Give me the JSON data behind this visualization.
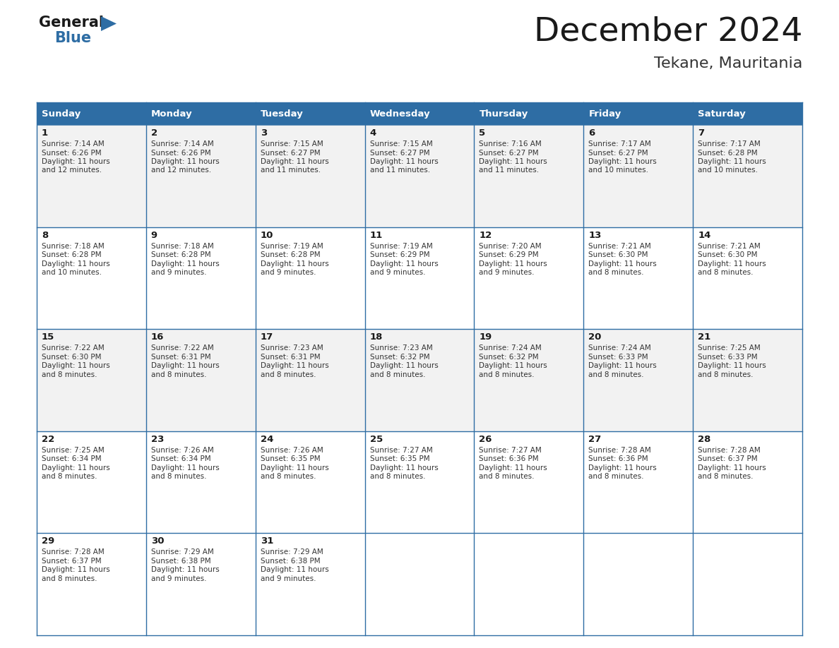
{
  "title": "December 2024",
  "subtitle": "Tekane, Mauritania",
  "header_color": "#2E6DA4",
  "header_text_color": "#FFFFFF",
  "day_names": [
    "Sunday",
    "Monday",
    "Tuesday",
    "Wednesday",
    "Thursday",
    "Friday",
    "Saturday"
  ],
  "grid_line_color": "#2E6DA4",
  "odd_row_color": "#F2F2F2",
  "even_row_color": "#FFFFFF",
  "last_row_empty_color": "#FFFFFF",
  "title_color": "#1a1a1a",
  "subtitle_color": "#333333",
  "cell_text_color": "#333333",
  "day_num_color": "#1a1a1a",
  "days": [
    {
      "date": 1,
      "dow": 0,
      "week": 0,
      "sunrise": "7:14 AM",
      "sunset": "6:26 PM",
      "daylight": "11 hours and 12 minutes."
    },
    {
      "date": 2,
      "dow": 1,
      "week": 0,
      "sunrise": "7:14 AM",
      "sunset": "6:26 PM",
      "daylight": "11 hours and 12 minutes."
    },
    {
      "date": 3,
      "dow": 2,
      "week": 0,
      "sunrise": "7:15 AM",
      "sunset": "6:27 PM",
      "daylight": "11 hours and 11 minutes."
    },
    {
      "date": 4,
      "dow": 3,
      "week": 0,
      "sunrise": "7:15 AM",
      "sunset": "6:27 PM",
      "daylight": "11 hours and 11 minutes."
    },
    {
      "date": 5,
      "dow": 4,
      "week": 0,
      "sunrise": "7:16 AM",
      "sunset": "6:27 PM",
      "daylight": "11 hours and 11 minutes."
    },
    {
      "date": 6,
      "dow": 5,
      "week": 0,
      "sunrise": "7:17 AM",
      "sunset": "6:27 PM",
      "daylight": "11 hours and 10 minutes."
    },
    {
      "date": 7,
      "dow": 6,
      "week": 0,
      "sunrise": "7:17 AM",
      "sunset": "6:28 PM",
      "daylight": "11 hours and 10 minutes."
    },
    {
      "date": 8,
      "dow": 0,
      "week": 1,
      "sunrise": "7:18 AM",
      "sunset": "6:28 PM",
      "daylight": "11 hours and 10 minutes."
    },
    {
      "date": 9,
      "dow": 1,
      "week": 1,
      "sunrise": "7:18 AM",
      "sunset": "6:28 PM",
      "daylight": "11 hours and 9 minutes."
    },
    {
      "date": 10,
      "dow": 2,
      "week": 1,
      "sunrise": "7:19 AM",
      "sunset": "6:28 PM",
      "daylight": "11 hours and 9 minutes."
    },
    {
      "date": 11,
      "dow": 3,
      "week": 1,
      "sunrise": "7:19 AM",
      "sunset": "6:29 PM",
      "daylight": "11 hours and 9 minutes."
    },
    {
      "date": 12,
      "dow": 4,
      "week": 1,
      "sunrise": "7:20 AM",
      "sunset": "6:29 PM",
      "daylight": "11 hours and 9 minutes."
    },
    {
      "date": 13,
      "dow": 5,
      "week": 1,
      "sunrise": "7:21 AM",
      "sunset": "6:30 PM",
      "daylight": "11 hours and 8 minutes."
    },
    {
      "date": 14,
      "dow": 6,
      "week": 1,
      "sunrise": "7:21 AM",
      "sunset": "6:30 PM",
      "daylight": "11 hours and 8 minutes."
    },
    {
      "date": 15,
      "dow": 0,
      "week": 2,
      "sunrise": "7:22 AM",
      "sunset": "6:30 PM",
      "daylight": "11 hours and 8 minutes."
    },
    {
      "date": 16,
      "dow": 1,
      "week": 2,
      "sunrise": "7:22 AM",
      "sunset": "6:31 PM",
      "daylight": "11 hours and 8 minutes."
    },
    {
      "date": 17,
      "dow": 2,
      "week": 2,
      "sunrise": "7:23 AM",
      "sunset": "6:31 PM",
      "daylight": "11 hours and 8 minutes."
    },
    {
      "date": 18,
      "dow": 3,
      "week": 2,
      "sunrise": "7:23 AM",
      "sunset": "6:32 PM",
      "daylight": "11 hours and 8 minutes."
    },
    {
      "date": 19,
      "dow": 4,
      "week": 2,
      "sunrise": "7:24 AM",
      "sunset": "6:32 PM",
      "daylight": "11 hours and 8 minutes."
    },
    {
      "date": 20,
      "dow": 5,
      "week": 2,
      "sunrise": "7:24 AM",
      "sunset": "6:33 PM",
      "daylight": "11 hours and 8 minutes."
    },
    {
      "date": 21,
      "dow": 6,
      "week": 2,
      "sunrise": "7:25 AM",
      "sunset": "6:33 PM",
      "daylight": "11 hours and 8 minutes."
    },
    {
      "date": 22,
      "dow": 0,
      "week": 3,
      "sunrise": "7:25 AM",
      "sunset": "6:34 PM",
      "daylight": "11 hours and 8 minutes."
    },
    {
      "date": 23,
      "dow": 1,
      "week": 3,
      "sunrise": "7:26 AM",
      "sunset": "6:34 PM",
      "daylight": "11 hours and 8 minutes."
    },
    {
      "date": 24,
      "dow": 2,
      "week": 3,
      "sunrise": "7:26 AM",
      "sunset": "6:35 PM",
      "daylight": "11 hours and 8 minutes."
    },
    {
      "date": 25,
      "dow": 3,
      "week": 3,
      "sunrise": "7:27 AM",
      "sunset": "6:35 PM",
      "daylight": "11 hours and 8 minutes."
    },
    {
      "date": 26,
      "dow": 4,
      "week": 3,
      "sunrise": "7:27 AM",
      "sunset": "6:36 PM",
      "daylight": "11 hours and 8 minutes."
    },
    {
      "date": 27,
      "dow": 5,
      "week": 3,
      "sunrise": "7:28 AM",
      "sunset": "6:36 PM",
      "daylight": "11 hours and 8 minutes."
    },
    {
      "date": 28,
      "dow": 6,
      "week": 3,
      "sunrise": "7:28 AM",
      "sunset": "6:37 PM",
      "daylight": "11 hours and 8 minutes."
    },
    {
      "date": 29,
      "dow": 0,
      "week": 4,
      "sunrise": "7:28 AM",
      "sunset": "6:37 PM",
      "daylight": "11 hours and 8 minutes."
    },
    {
      "date": 30,
      "dow": 1,
      "week": 4,
      "sunrise": "7:29 AM",
      "sunset": "6:38 PM",
      "daylight": "11 hours and 9 minutes."
    },
    {
      "date": 31,
      "dow": 2,
      "week": 4,
      "sunrise": "7:29 AM",
      "sunset": "6:38 PM",
      "daylight": "11 hours and 9 minutes."
    }
  ],
  "num_weeks": 5,
  "logo_triangle_color": "#2E6DA4",
  "logo_general_color": "#1a1a1a",
  "logo_blue_color": "#2E6DA4"
}
